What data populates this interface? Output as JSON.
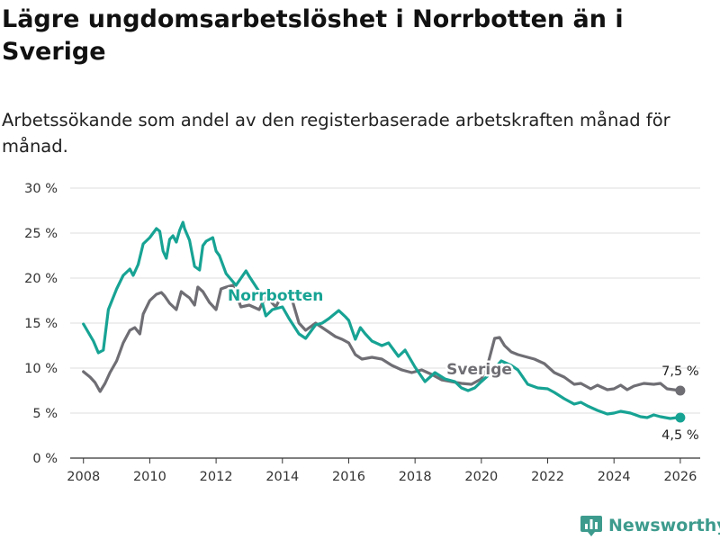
{
  "title": "Lägre ungdomsarbetslöshet i Norrbotten än i Sverige",
  "subtitle": "Arbetssökande som andel av den registerbaserade arbetskraften månad för månad.",
  "brand": "Newsworthy",
  "colors": {
    "norrbotten": "#17a394",
    "sverige": "#6f6e74",
    "grid": "#dddddd",
    "axis": "#333333"
  },
  "chart_data": {
    "type": "line",
    "xlim": [
      2007.6,
      2026.6
    ],
    "ylim": [
      0,
      30
    ],
    "yticks": [
      0,
      5,
      10,
      15,
      20,
      25,
      30
    ],
    "ytick_labels": [
      "0 %",
      "5 %",
      "10 %",
      "15 %",
      "20 %",
      "25 %",
      "30 %"
    ],
    "xticks": [
      2008,
      2010,
      2012,
      2014,
      2016,
      2018,
      2020,
      2022,
      2024,
      2026
    ],
    "xtick_labels": [
      "2008",
      "2010",
      "2012",
      "2014",
      "2016",
      "2018",
      "2020",
      "2022",
      "2024",
      "2026"
    ],
    "series": [
      {
        "name": "Norrbotten",
        "label": "Norrbotten",
        "end_label": "4,5 %",
        "x": [
          2008.0,
          2008.3,
          2008.45,
          2008.6,
          2008.75,
          2009.0,
          2009.2,
          2009.4,
          2009.5,
          2009.65,
          2009.8,
          2010.0,
          2010.2,
          2010.3,
          2010.4,
          2010.5,
          2010.6,
          2010.7,
          2010.8,
          2010.9,
          2011.0,
          2011.05,
          2011.2,
          2011.35,
          2011.5,
          2011.6,
          2011.7,
          2011.9,
          2012.0,
          2012.1,
          2012.3,
          2012.6,
          2012.9,
          2013.0,
          2013.3,
          2013.5,
          2013.7,
          2014.0,
          2014.2,
          2014.5,
          2014.7,
          2015.0,
          2015.2,
          2015.4,
          2015.7,
          2015.9,
          2016.0,
          2016.2,
          2016.35,
          2016.5,
          2016.7,
          2017.0,
          2017.2,
          2017.5,
          2017.7,
          2018.0,
          2018.3,
          2018.6,
          2018.9,
          2019.2,
          2019.4,
          2019.6,
          2019.8,
          2020.0,
          2020.3,
          2020.6,
          2020.9,
          2021.1,
          2021.4,
          2021.7,
          2022.0,
          2022.2,
          2022.5,
          2022.8,
          2023.0,
          2023.2,
          2023.5,
          2023.8,
          2024.0,
          2024.2,
          2024.5,
          2024.8,
          2025.0,
          2025.2,
          2025.4,
          2025.7,
          2025.9,
          2026.0
        ],
        "values": [
          14.9,
          13.0,
          11.7,
          12.0,
          16.5,
          18.8,
          20.3,
          21.0,
          20.3,
          21.5,
          23.8,
          24.5,
          25.5,
          25.2,
          23.0,
          22.2,
          24.3,
          24.7,
          24.0,
          25.3,
          26.2,
          25.5,
          24.2,
          21.3,
          20.9,
          23.6,
          24.1,
          24.5,
          23.0,
          22.5,
          20.5,
          19.2,
          20.8,
          20.2,
          18.5,
          15.8,
          16.5,
          16.8,
          15.5,
          13.8,
          13.3,
          14.8,
          15.0,
          15.5,
          16.4,
          15.7,
          15.3,
          13.2,
          14.5,
          13.8,
          13.0,
          12.5,
          12.8,
          11.3,
          12.0,
          10.1,
          8.5,
          9.5,
          8.8,
          8.5,
          7.8,
          7.5,
          7.8,
          8.5,
          9.5,
          10.8,
          10.3,
          9.8,
          8.2,
          7.8,
          7.7,
          7.3,
          6.6,
          6.0,
          6.2,
          5.8,
          5.3,
          4.9,
          5.0,
          5.2,
          5.0,
          4.6,
          4.5,
          4.8,
          4.6,
          4.4,
          4.5,
          4.5
        ]
      },
      {
        "name": "Sverige",
        "label": "Sverige",
        "end_label": "7,5 %",
        "x": [
          2008.0,
          2008.2,
          2008.35,
          2008.5,
          2008.65,
          2008.8,
          2009.0,
          2009.2,
          2009.4,
          2009.55,
          2009.7,
          2009.8,
          2010.0,
          2010.2,
          2010.35,
          2010.45,
          2010.6,
          2010.8,
          2010.95,
          2011.05,
          2011.2,
          2011.35,
          2011.45,
          2011.6,
          2011.8,
          2012.0,
          2012.15,
          2012.3,
          2012.5,
          2012.75,
          2013.0,
          2013.3,
          2013.5,
          2013.8,
          2014.0,
          2014.3,
          2014.5,
          2014.7,
          2015.0,
          2015.2,
          2015.4,
          2015.6,
          2015.8,
          2016.0,
          2016.2,
          2016.4,
          2016.7,
          2017.0,
          2017.3,
          2017.6,
          2017.9,
          2018.2,
          2018.5,
          2018.8,
          2019.1,
          2019.4,
          2019.7,
          2020.0,
          2020.2,
          2020.4,
          2020.55,
          2020.7,
          2020.9,
          2021.1,
          2021.3,
          2021.6,
          2021.9,
          2022.2,
          2022.5,
          2022.8,
          2023.0,
          2023.3,
          2023.5,
          2023.8,
          2024.0,
          2024.2,
          2024.4,
          2024.6,
          2024.9,
          2025.2,
          2025.4,
          2025.6,
          2025.8,
          2026.0
        ],
        "values": [
          9.6,
          9.0,
          8.4,
          7.4,
          8.3,
          9.5,
          10.8,
          12.8,
          14.2,
          14.5,
          13.8,
          16.0,
          17.5,
          18.2,
          18.4,
          18.0,
          17.2,
          16.5,
          18.5,
          18.2,
          17.8,
          17.0,
          19.0,
          18.5,
          17.3,
          16.5,
          18.8,
          19.0,
          19.2,
          16.8,
          17.0,
          16.5,
          18.0,
          16.8,
          18.2,
          17.5,
          15.0,
          14.2,
          15.0,
          14.5,
          14.0,
          13.5,
          13.2,
          12.8,
          11.5,
          11.0,
          11.2,
          11.0,
          10.3,
          9.8,
          9.5,
          9.8,
          9.3,
          8.7,
          8.5,
          8.3,
          8.2,
          8.8,
          10.5,
          13.3,
          13.4,
          12.5,
          11.8,
          11.5,
          11.3,
          11.0,
          10.5,
          9.5,
          9.0,
          8.2,
          8.3,
          7.7,
          8.1,
          7.6,
          7.7,
          8.1,
          7.6,
          8.0,
          8.3,
          8.2,
          8.3,
          7.7,
          7.6,
          7.5
        ]
      }
    ]
  }
}
